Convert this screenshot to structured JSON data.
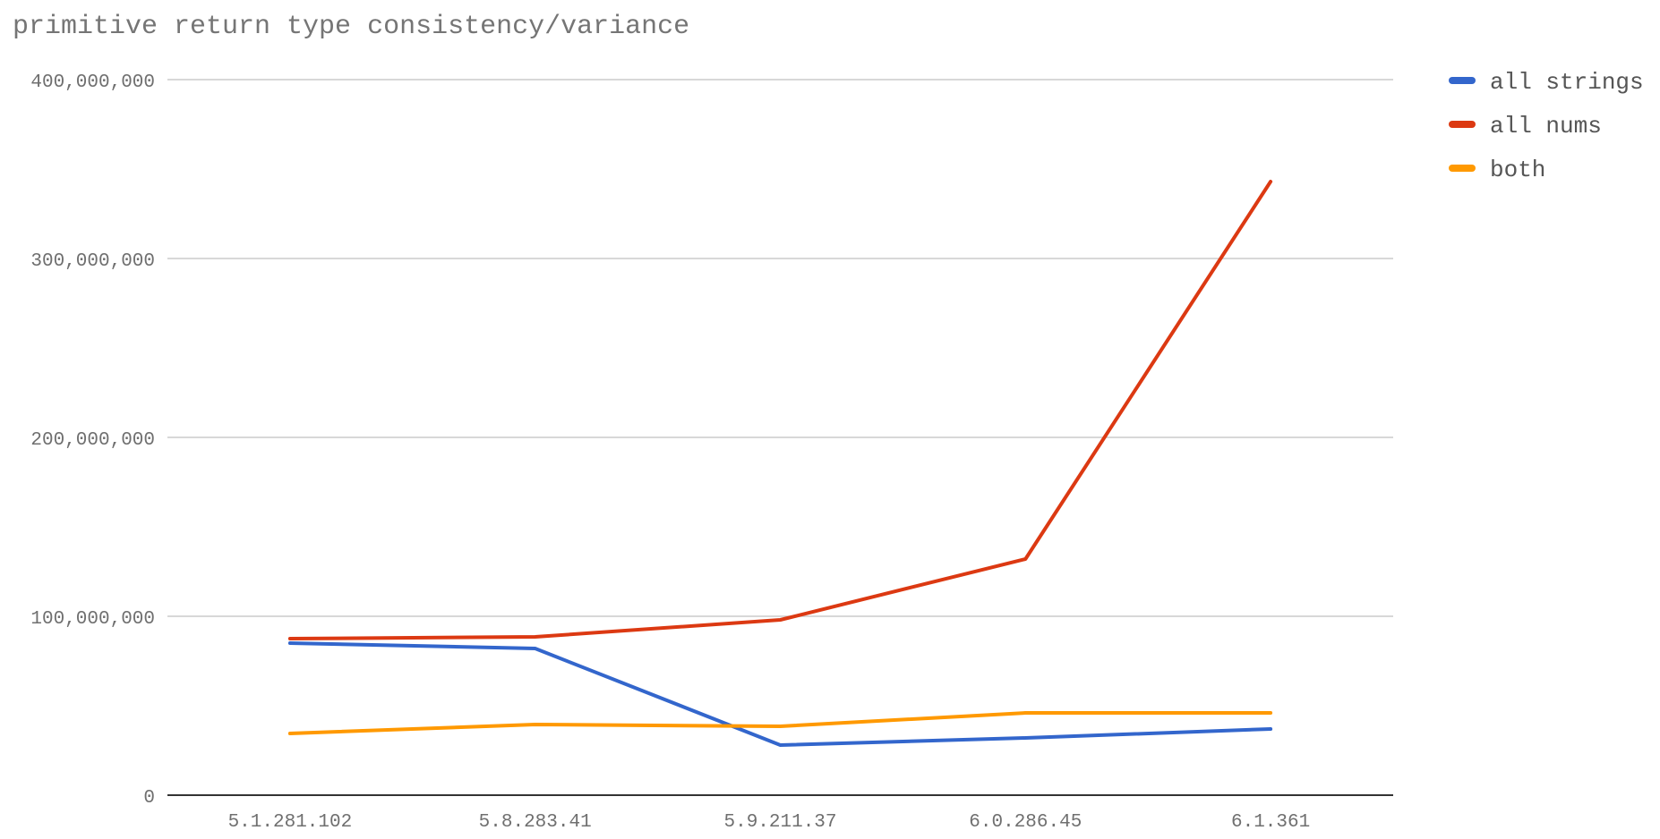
{
  "chart_data": {
    "type": "line",
    "title": "primitive return type consistency/variance",
    "xlabel": "",
    "ylabel": "",
    "categories": [
      "5.1.281.102",
      "5.8.283.41",
      "5.9.211.37",
      "6.0.286.45",
      "6.1.361"
    ],
    "ylim": [
      0,
      400000000
    ],
    "yticks": [
      0,
      100000000,
      200000000,
      300000000,
      400000000
    ],
    "ytick_labels": [
      "0",
      "100,000,000",
      "200,000,000",
      "300,000,000",
      "400,000,000"
    ],
    "grid": true,
    "legend_position": "right",
    "series": [
      {
        "name": "all strings",
        "color": "#3366cc",
        "values": [
          85000000,
          82000000,
          28000000,
          32000000,
          37000000
        ]
      },
      {
        "name": "all nums",
        "color": "#dc3912",
        "values": [
          87500000,
          88500000,
          98000000,
          132000000,
          343000000
        ]
      },
      {
        "name": "both",
        "color": "#ff9900",
        "values": [
          34500000,
          39500000,
          38500000,
          46000000,
          46000000
        ]
      }
    ]
  }
}
